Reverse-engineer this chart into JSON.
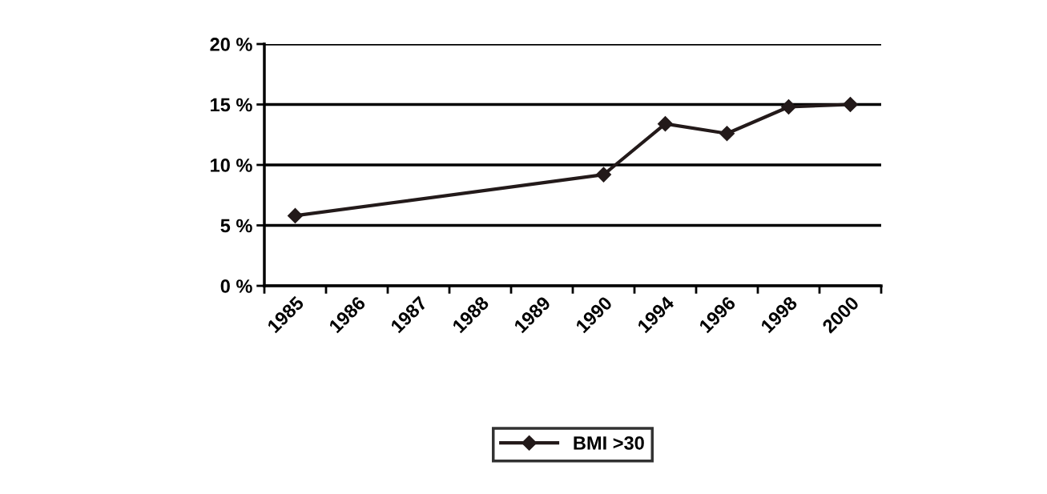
{
  "chart_data": {
    "type": "line",
    "categories": [
      "1985",
      "1986",
      "1987",
      "1988",
      "1989",
      "1990",
      "1994",
      "1996",
      "1998",
      "2000"
    ],
    "series": [
      {
        "name": "BMI >30",
        "color": "#231a1a",
        "values": [
          5.8,
          null,
          null,
          null,
          null,
          9.2,
          13.4,
          12.6,
          14.8,
          15.0
        ]
      }
    ],
    "ylim": [
      0,
      20
    ],
    "yticks": [
      {
        "value": 0,
        "label": "0 %"
      },
      {
        "value": 5,
        "label": "5 %"
      },
      {
        "value": 10,
        "label": "10 %"
      },
      {
        "value": 15,
        "label": "15 %"
      },
      {
        "value": 20,
        "label": "20 %"
      }
    ],
    "grid": "y",
    "legend": "bottom",
    "marker": "diamond",
    "line_style": "solid"
  }
}
